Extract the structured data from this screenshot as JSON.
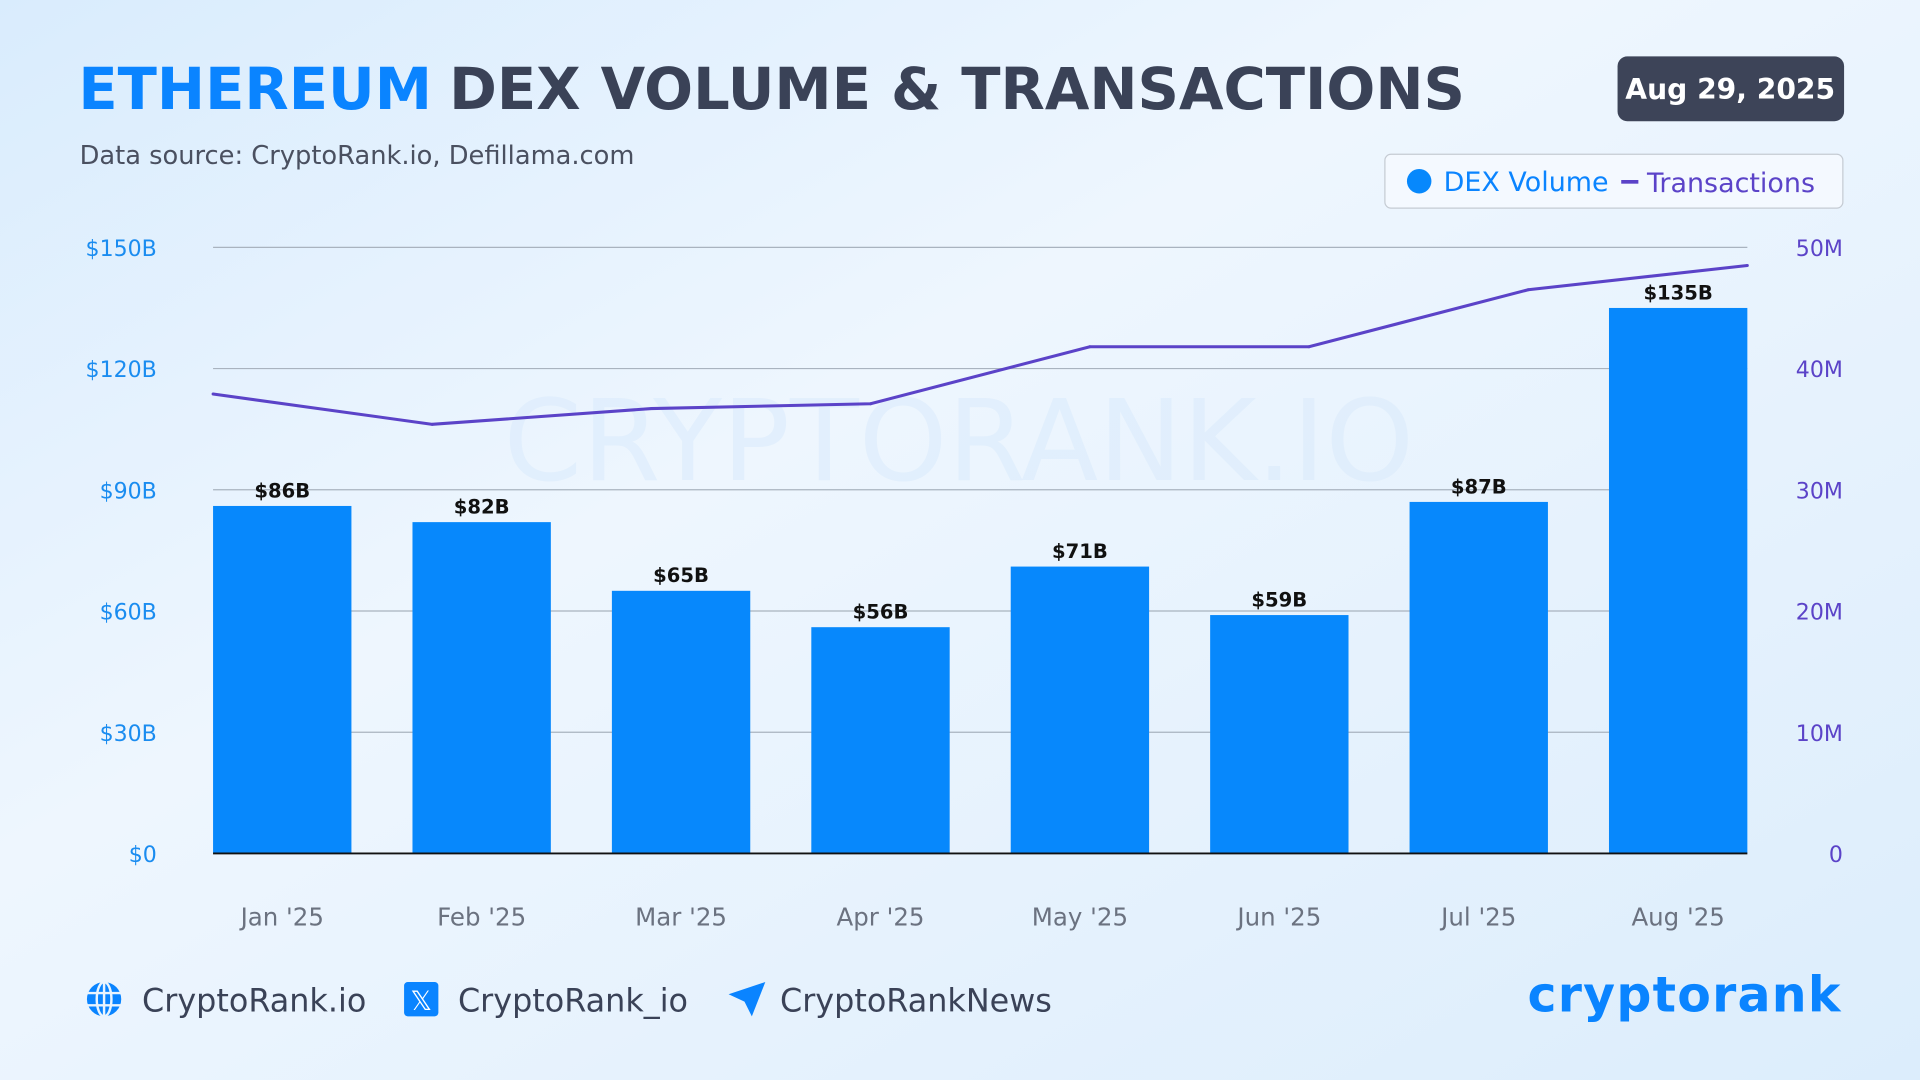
{
  "header": {
    "title_highlight": "ETHEREUM",
    "title_rest": "DEX VOLUME & TRANSACTIONS",
    "subtitle": "Data source: CryptoRank.io, Defillama.com",
    "date": "Aug 29, 2025"
  },
  "watermark": "CRYPTORANK.IO",
  "colors": {
    "accent": "#0a84ff",
    "bar": "#0788fc",
    "line": "#5b43c8",
    "title_dark": "#3a4257",
    "date_badge": "#3d4458"
  },
  "chart_data": {
    "type": "bar+line",
    "categories": [
      "Jan '25",
      "Feb '25",
      "Mar '25",
      "Apr '25",
      "May '25",
      "Jun '25",
      "Jul '25",
      "Aug '25"
    ],
    "series": [
      {
        "name": "DEX Volume",
        "type": "bar",
        "axis": "left",
        "unit": "B USD",
        "values": [
          86,
          82,
          65,
          56,
          71,
          59,
          87,
          135
        ],
        "labels": [
          "$86B",
          "$82B",
          "$65B",
          "$56B",
          "$71B",
          "$59B",
          "$87B",
          "$135B"
        ]
      },
      {
        "name": "Transactions",
        "type": "line",
        "axis": "right",
        "unit": "M",
        "values": [
          37.9,
          35.4,
          36.7,
          37.1,
          41.8,
          41.8,
          46.5,
          48.5
        ]
      }
    ],
    "left_axis": {
      "range": [
        0,
        150
      ],
      "ticks": [
        0,
        30,
        60,
        90,
        120,
        150
      ],
      "tick_labels": [
        "$0",
        "$30B",
        "$60B",
        "$90B",
        "$120B",
        "$150B"
      ]
    },
    "right_axis": {
      "range": [
        0,
        50
      ],
      "ticks": [
        0,
        10,
        20,
        30,
        40,
        50
      ],
      "tick_labels": [
        "0",
        "10M",
        "20M",
        "30M",
        "40M",
        "50M"
      ]
    },
    "grid": true,
    "legend_placement": "top-right"
  },
  "footer": {
    "links": [
      {
        "icon": "globe-icon",
        "label": "CryptoRank.io"
      },
      {
        "icon": "x-icon",
        "label": "CryptoRank_io"
      },
      {
        "icon": "telegram-icon",
        "label": "CryptoRankNews"
      }
    ],
    "logo": "cryptorank"
  }
}
